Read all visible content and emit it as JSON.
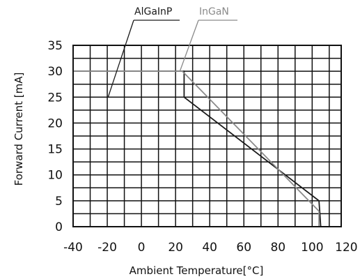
{
  "chart_data": {
    "type": "line",
    "xlabel": "Ambient  Temperature[°C]",
    "ylabel": "Forward Current [mA]",
    "xlim": [
      -40,
      120
    ],
    "ylim": [
      0,
      35
    ],
    "x_ticks": [
      "-40",
      "-20",
      "0",
      "20",
      "40",
      "60",
      "80",
      "100",
      "120"
    ],
    "y_ticks": [
      "35",
      "30",
      "25",
      "20",
      "15",
      "10",
      "5",
      "0"
    ],
    "grid": true,
    "legend_position": "top",
    "series": [
      {
        "name": "AlGaInP",
        "color": "#1a1a1a",
        "points": [
          [
            -40,
            30
          ],
          [
            25,
            30
          ],
          [
            25,
            25
          ],
          [
            104,
            5
          ],
          [
            105,
            0
          ]
        ]
      },
      {
        "name": "InGaN",
        "color": "#8a8a8a",
        "points": [
          [
            -40,
            30
          ],
          [
            24,
            30
          ],
          [
            104,
            3
          ],
          [
            104,
            0
          ]
        ]
      }
    ]
  }
}
